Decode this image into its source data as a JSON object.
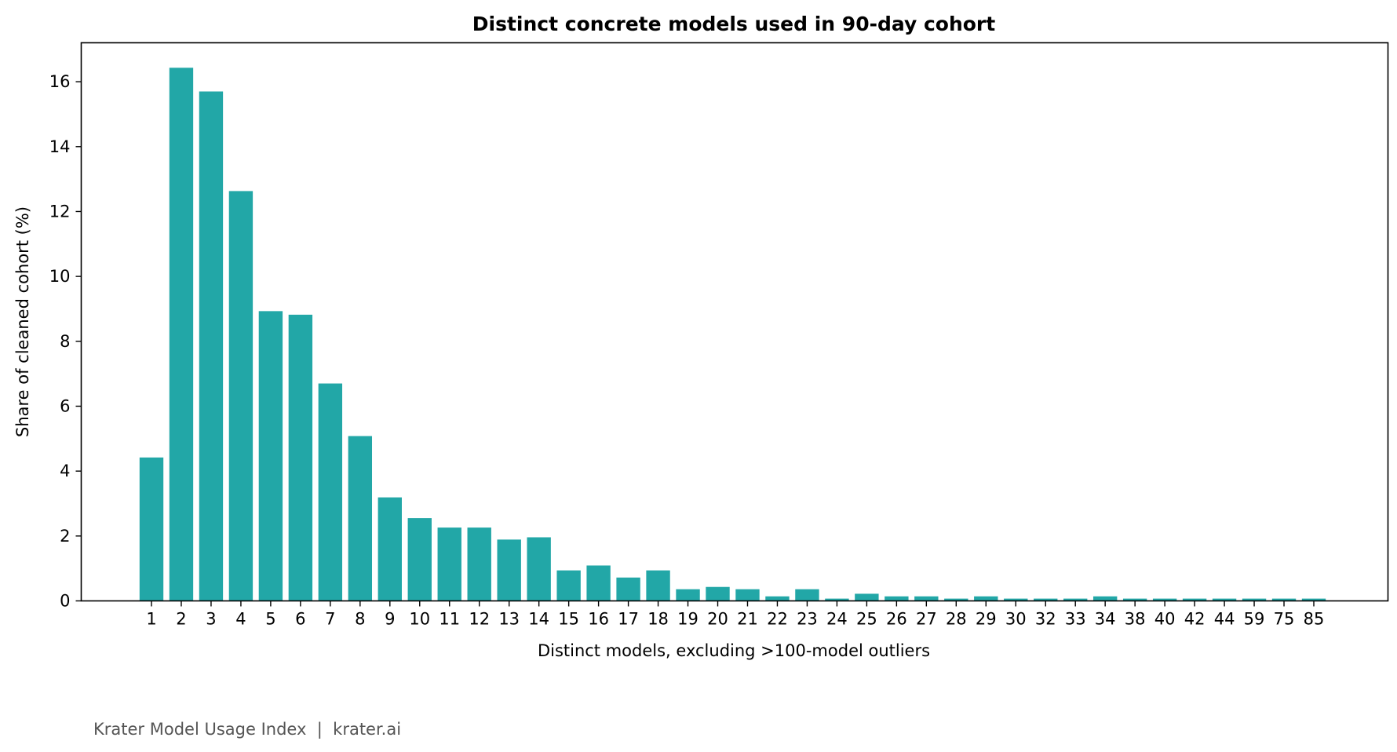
{
  "chart_data": {
    "type": "bar",
    "title": "Distinct concrete models used in 90-day cohort",
    "xlabel": "Distinct models, excluding >100-model outliers",
    "ylabel": "Share of cleaned cohort (%)",
    "ylim": [
      0,
      17.2
    ],
    "yticks": [
      0,
      2,
      4,
      6,
      8,
      10,
      12,
      14,
      16
    ],
    "grid": false,
    "bar_color": "#22a7a7",
    "categories": [
      "1",
      "2",
      "3",
      "4",
      "5",
      "6",
      "7",
      "8",
      "9",
      "10",
      "11",
      "12",
      "13",
      "14",
      "15",
      "16",
      "17",
      "18",
      "19",
      "20",
      "21",
      "22",
      "23",
      "24",
      "25",
      "26",
      "27",
      "28",
      "29",
      "30",
      "32",
      "33",
      "34",
      "38",
      "40",
      "42",
      "44",
      "59",
      "75",
      "85"
    ],
    "values": [
      4.42,
      16.43,
      15.7,
      12.63,
      8.93,
      8.82,
      6.7,
      5.08,
      3.19,
      2.55,
      2.26,
      2.26,
      1.89,
      1.96,
      0.94,
      1.09,
      0.72,
      0.94,
      0.36,
      0.43,
      0.36,
      0.14,
      0.36,
      0.07,
      0.22,
      0.14,
      0.14,
      0.07,
      0.14,
      0.07,
      0.07,
      0.07,
      0.14,
      0.07,
      0.07,
      0.07,
      0.07,
      0.07,
      0.07,
      0.07
    ]
  },
  "footer": {
    "text": "Krater Model Usage Index  |  krater.ai"
  }
}
